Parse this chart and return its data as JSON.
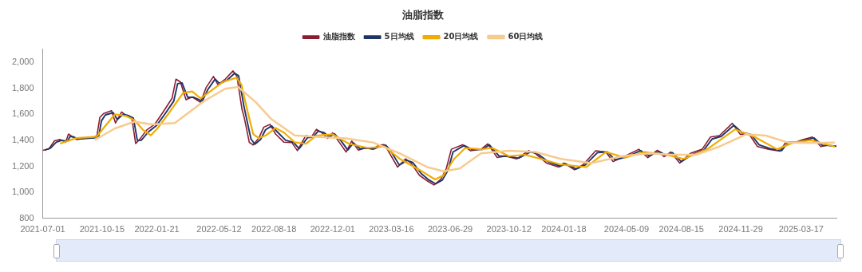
{
  "chart_data": {
    "type": "line",
    "title": "油脂指数",
    "legend": "top",
    "grid": false,
    "xlim": [
      "2021-07-01",
      "2025-05-19"
    ],
    "xticks": [
      "2021-07-01",
      "2021-10-15",
      "2022-01-21",
      "2022-05-12",
      "2022-08-18",
      "2022-12-01",
      "2023-03-16",
      "2023-06-29",
      "2023-10-12",
      "2024-01-18",
      "2024-05-09",
      "2024-08-15",
      "2024-11-29",
      "2025-03-17"
    ],
    "ylim": [
      800,
      2100
    ],
    "yticks": [
      {
        "value": 800,
        "label": "800"
      },
      {
        "value": 1000,
        "label": "1,000"
      },
      {
        "value": 1200,
        "label": "1,200"
      },
      {
        "value": 1400,
        "label": "1,400"
      },
      {
        "value": 1600,
        "label": "1,600"
      },
      {
        "value": 1800,
        "label": "1,800"
      },
      {
        "value": 2000,
        "label": "2,000"
      }
    ],
    "series": [
      {
        "name": "油脂指数",
        "color": "#8b1c32",
        "x": [
          "2021-07-01",
          "2021-07-12",
          "2021-07-22",
          "2021-08-01",
          "2021-08-11",
          "2021-08-16",
          "2021-08-23",
          "2021-08-30",
          "2021-09-14",
          "2021-09-29",
          "2021-10-06",
          "2021-10-11",
          "2021-10-18",
          "2021-11-01",
          "2021-11-08",
          "2021-11-19",
          "2021-11-28",
          "2021-12-07",
          "2021-12-14",
          "2021-12-21",
          "2022-01-03",
          "2022-01-17",
          "2022-02-01",
          "2022-02-17",
          "2022-02-24",
          "2022-03-04",
          "2022-03-14",
          "2022-03-25",
          "2022-04-09",
          "2022-04-19",
          "2022-05-02",
          "2022-05-10",
          "2022-05-23",
          "2022-06-06",
          "2022-06-13",
          "2022-06-22",
          "2022-06-26",
          "2022-07-05",
          "2022-07-12",
          "2022-07-22",
          "2022-07-31",
          "2022-08-11",
          "2022-08-21",
          "2022-09-05",
          "2022-09-19",
          "2022-09-29",
          "2022-10-14",
          "2022-10-24",
          "2022-11-02",
          "2022-11-12",
          "2022-11-22",
          "2022-12-01",
          "2022-12-13",
          "2022-12-25",
          "2023-01-04",
          "2023-01-16",
          "2023-01-28",
          "2023-02-11",
          "2023-02-21",
          "2023-03-03",
          "2023-03-10",
          "2023-03-27",
          "2023-04-10",
          "2023-04-20",
          "2023-05-05",
          "2023-05-19",
          "2023-05-31",
          "2023-06-12",
          "2023-06-22",
          "2023-07-01",
          "2023-07-21",
          "2023-08-04",
          "2023-08-23",
          "2023-09-04",
          "2023-09-21",
          "2023-10-06",
          "2023-10-26",
          "2023-11-16",
          "2023-11-28",
          "2023-12-18",
          "2024-01-09",
          "2024-01-18",
          "2024-02-06",
          "2024-02-22",
          "2024-03-15",
          "2024-04-02",
          "2024-04-15",
          "2024-05-06",
          "2024-05-31",
          "2024-06-16",
          "2024-07-03",
          "2024-07-15",
          "2024-07-27",
          "2024-08-12",
          "2024-08-31",
          "2024-09-21",
          "2024-10-06",
          "2024-10-22",
          "2024-11-14",
          "2024-11-28",
          "2024-12-14",
          "2024-12-29",
          "2025-01-18",
          "2025-02-07",
          "2025-02-17",
          "2025-03-08",
          "2025-03-19",
          "2025-04-06",
          "2025-04-21",
          "2025-05-03",
          "2025-05-16"
        ],
        "values": [
          1322,
          1333,
          1396,
          1406,
          1385,
          1448,
          1427,
          1406,
          1417,
          1417,
          1438,
          1575,
          1606,
          1627,
          1533,
          1617,
          1585,
          1575,
          1375,
          1406,
          1480,
          1522,
          1617,
          1722,
          1869,
          1848,
          1712,
          1733,
          1691,
          1806,
          1890,
          1827,
          1869,
          1933,
          1890,
          1638,
          1575,
          1385,
          1364,
          1417,
          1501,
          1522,
          1448,
          1385,
          1383,
          1320,
          1436,
          1425,
          1484,
          1457,
          1415,
          1457,
          1383,
          1310,
          1394,
          1324,
          1341,
          1331,
          1362,
          1366,
          1320,
          1194,
          1257,
          1225,
          1131,
          1088,
          1057,
          1099,
          1183,
          1331,
          1366,
          1320,
          1331,
          1373,
          1267,
          1278,
          1257,
          1320,
          1299,
          1225,
          1194,
          1225,
          1173,
          1215,
          1320,
          1310,
          1236,
          1278,
          1331,
          1267,
          1324,
          1274,
          1310,
          1225,
          1299,
          1331,
          1425,
          1436,
          1530,
          1446,
          1446,
          1352,
          1331,
          1316,
          1383,
          1387,
          1404,
          1425,
          1352,
          1362,
          1352
        ]
      },
      {
        "name": "5日均线",
        "color": "#1f3566",
        "x": [
          "2021-07-05",
          "2021-07-15",
          "2021-07-25",
          "2021-08-04",
          "2021-08-14",
          "2021-08-19",
          "2021-08-26",
          "2021-09-02",
          "2021-09-17",
          "2021-10-01",
          "2021-10-09",
          "2021-10-14",
          "2021-10-21",
          "2021-11-04",
          "2021-11-11",
          "2021-11-22",
          "2021-12-01",
          "2021-12-10",
          "2021-12-17",
          "2021-12-24",
          "2022-01-06",
          "2022-01-20",
          "2022-02-04",
          "2022-02-20",
          "2022-02-27",
          "2022-03-07",
          "2022-03-17",
          "2022-03-28",
          "2022-04-12",
          "2022-04-22",
          "2022-05-05",
          "2022-05-13",
          "2022-05-26",
          "2022-06-09",
          "2022-06-16",
          "2022-06-25",
          "2022-06-29",
          "2022-07-08",
          "2022-07-15",
          "2022-07-25",
          "2022-08-03",
          "2022-08-14",
          "2022-08-24",
          "2022-09-08",
          "2022-09-22",
          "2022-10-02",
          "2022-10-17",
          "2022-10-27",
          "2022-11-05",
          "2022-11-15",
          "2022-11-25",
          "2022-12-04",
          "2022-12-16",
          "2022-12-28",
          "2023-01-07",
          "2023-01-19",
          "2023-01-31",
          "2023-02-14",
          "2023-02-24",
          "2023-03-06",
          "2023-03-13",
          "2023-03-30",
          "2023-04-13",
          "2023-04-23",
          "2023-05-08",
          "2023-05-22",
          "2023-06-03",
          "2023-06-15",
          "2023-06-25",
          "2023-07-04",
          "2023-07-24",
          "2023-08-07",
          "2023-08-26",
          "2023-09-07",
          "2023-09-24",
          "2023-10-09",
          "2023-10-29",
          "2023-11-19",
          "2023-12-01",
          "2023-12-21",
          "2024-01-12",
          "2024-01-21",
          "2024-02-09",
          "2024-02-25",
          "2024-03-18",
          "2024-04-05",
          "2024-04-18",
          "2024-05-09",
          "2024-06-03",
          "2024-06-19",
          "2024-07-06",
          "2024-07-18",
          "2024-07-30",
          "2024-08-15",
          "2024-09-03",
          "2024-09-24",
          "2024-10-09",
          "2024-10-25",
          "2024-11-17",
          "2024-12-01",
          "2024-12-17",
          "2025-01-01",
          "2025-01-21",
          "2025-02-10",
          "2025-02-20",
          "2025-03-11",
          "2025-03-22",
          "2025-04-09",
          "2025-04-24",
          "2025-05-06",
          "2025-05-19"
        ],
        "values": [
          1325,
          1340,
          1385,
          1400,
          1392,
          1430,
          1425,
          1410,
          1414,
          1418,
          1432,
          1550,
          1595,
          1612,
          1560,
          1600,
          1590,
          1570,
          1400,
          1400,
          1465,
          1512,
          1600,
          1700,
          1835,
          1840,
          1730,
          1730,
          1700,
          1790,
          1870,
          1835,
          1860,
          1915,
          1895,
          1670,
          1590,
          1410,
          1370,
          1405,
          1480,
          1510,
          1465,
          1400,
          1385,
          1335,
          1420,
          1425,
          1470,
          1460,
          1425,
          1450,
          1395,
          1325,
          1380,
          1335,
          1340,
          1335,
          1355,
          1362,
          1330,
          1210,
          1245,
          1230,
          1145,
          1095,
          1065,
          1095,
          1170,
          1310,
          1360,
          1330,
          1330,
          1365,
          1280,
          1278,
          1262,
          1310,
          1300,
          1235,
          1200,
          1220,
          1180,
          1210,
          1305,
          1310,
          1250,
          1272,
          1320,
          1280,
          1315,
          1285,
          1305,
          1235,
          1290,
          1325,
          1410,
          1430,
          1515,
          1460,
          1445,
          1365,
          1335,
          1320,
          1375,
          1385,
          1400,
          1418,
          1360,
          1360,
          1355
        ]
      },
      {
        "name": "20日均线",
        "color": "#f0ad00",
        "x": [
          "2021-08-01",
          "2021-08-30",
          "2021-10-05",
          "2021-10-23",
          "2021-11-07",
          "2021-11-28",
          "2021-12-12",
          "2021-12-27",
          "2022-01-10",
          "2022-01-22",
          "2022-02-11",
          "2022-03-09",
          "2022-03-25",
          "2022-04-09",
          "2022-04-29",
          "2022-05-19",
          "2022-06-12",
          "2022-06-21",
          "2022-07-01",
          "2022-07-12",
          "2022-07-22",
          "2022-08-04",
          "2022-08-21",
          "2022-09-05",
          "2022-09-24",
          "2022-10-14",
          "2022-11-02",
          "2022-12-01",
          "2022-12-30",
          "2023-02-02",
          "2023-03-03",
          "2023-03-31",
          "2023-05-05",
          "2023-06-02",
          "2023-06-17",
          "2023-07-06",
          "2023-07-26",
          "2023-08-23",
          "2023-09-12",
          "2023-10-12",
          "2023-11-09",
          "2023-12-08",
          "2024-01-11",
          "2024-02-27",
          "2024-04-02",
          "2024-05-06",
          "2024-06-10",
          "2024-07-19",
          "2024-08-19",
          "2024-09-30",
          "2024-11-19",
          "2024-12-24",
          "2025-02-02",
          "2025-03-03",
          "2025-04-03",
          "2025-05-16"
        ],
        "values": [
          1375,
          1417,
          1427,
          1522,
          1600,
          1585,
          1554,
          1480,
          1438,
          1491,
          1606,
          1764,
          1775,
          1722,
          1785,
          1848,
          1880,
          1827,
          1638,
          1448,
          1417,
          1438,
          1495,
          1459,
          1385,
          1373,
          1436,
          1446,
          1373,
          1341,
          1352,
          1257,
          1173,
          1099,
          1131,
          1257,
          1341,
          1331,
          1341,
          1278,
          1289,
          1257,
          1215,
          1194,
          1310,
          1267,
          1310,
          1289,
          1257,
          1331,
          1484,
          1425,
          1331,
          1383,
          1400,
          1352
        ]
      },
      {
        "name": "60日均线",
        "color": "#f7cb8f",
        "x": [
          "2021-10-02",
          "2021-11-07",
          "2021-12-12",
          "2022-01-12",
          "2022-02-22",
          "2022-04-15",
          "2022-05-23",
          "2022-06-15",
          "2022-07-17",
          "2022-08-13",
          "2022-09-24",
          "2022-11-07",
          "2022-12-25",
          "2023-02-11",
          "2023-03-31",
          "2023-05-19",
          "2023-06-17",
          "2023-07-16",
          "2023-08-23",
          "2023-10-12",
          "2023-11-28",
          "2024-01-13",
          "2024-03-07",
          "2024-05-01",
          "2024-06-18",
          "2024-08-01",
          "2024-09-10",
          "2024-10-22",
          "2024-12-09",
          "2025-01-13",
          "2025-02-21",
          "2025-04-03",
          "2025-05-16"
        ],
        "values": [
          1402,
          1491,
          1543,
          1522,
          1533,
          1701,
          1796,
          1810,
          1691,
          1564,
          1438,
          1425,
          1415,
          1383,
          1299,
          1194,
          1162,
          1183,
          1299,
          1320,
          1310,
          1257,
          1225,
          1278,
          1299,
          1289,
          1289,
          1352,
          1446,
          1436,
          1383,
          1379,
          1383
        ]
      }
    ]
  }
}
